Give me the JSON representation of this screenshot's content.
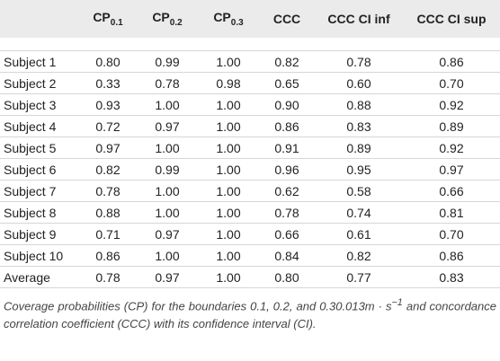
{
  "table": {
    "header": [
      "",
      {
        "text": "CP",
        "sub": "0.1"
      },
      {
        "text": "CP",
        "sub": "0.2"
      },
      {
        "text": "CP",
        "sub": "0.3"
      },
      "CCC",
      "CCC CI inf",
      "CCC CI sup"
    ],
    "rows": [
      [
        "Subject 1",
        "0.80",
        "0.99",
        "1.00",
        "0.82",
        "0.78",
        "0.86"
      ],
      [
        "Subject 2",
        "0.33",
        "0.78",
        "0.98",
        "0.65",
        "0.60",
        "0.70"
      ],
      [
        "Subject 3",
        "0.93",
        "1.00",
        "1.00",
        "0.90",
        "0.88",
        "0.92"
      ],
      [
        "Subject 4",
        "0.72",
        "0.97",
        "1.00",
        "0.86",
        "0.83",
        "0.89"
      ],
      [
        "Subject 5",
        "0.97",
        "1.00",
        "1.00",
        "0.91",
        "0.89",
        "0.92"
      ],
      [
        "Subject 6",
        "0.82",
        "0.99",
        "1.00",
        "0.96",
        "0.95",
        "0.97"
      ],
      [
        "Subject 7",
        "0.78",
        "1.00",
        "1.00",
        "0.62",
        "0.58",
        "0.66"
      ],
      [
        "Subject 8",
        "0.88",
        "1.00",
        "1.00",
        "0.78",
        "0.74",
        "0.81"
      ],
      [
        "Subject 9",
        "0.71",
        "0.97",
        "1.00",
        "0.66",
        "0.61",
        "0.70"
      ],
      [
        "Subject 10",
        "0.86",
        "1.00",
        "1.00",
        "0.84",
        "0.82",
        "0.86"
      ],
      [
        "Average",
        "0.78",
        "0.97",
        "1.00",
        "0.80",
        "0.77",
        "0.83"
      ]
    ]
  },
  "caption": {
    "before": "Coverage probabilities (CP) for the boundaries 0.1, 0.2, and 0.30.013m · s",
    "sup": "−1",
    "after": " and concordance correlation coefficient (CCC) with its confidence interval (CI)."
  }
}
